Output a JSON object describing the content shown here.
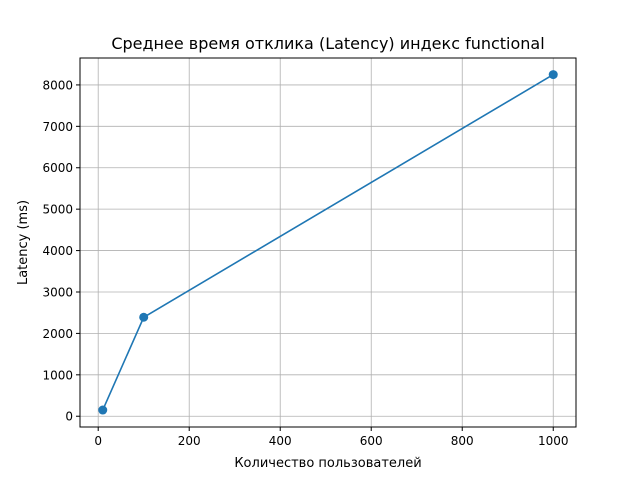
{
  "chart_data": {
    "type": "line",
    "title": "Среднее время отклика (Latency) индекс functional",
    "xlabel": "Количество пользователей",
    "ylabel": "Latency (ms)",
    "xlim": [
      -40,
      1050
    ],
    "ylim": [
      -260,
      8650
    ],
    "xticks": [
      0,
      200,
      400,
      600,
      800,
      1000
    ],
    "yticks": [
      0,
      1000,
      2000,
      3000,
      4000,
      5000,
      6000,
      7000,
      8000
    ],
    "grid": true,
    "series": [
      {
        "color": "#1f77b4",
        "marker": "circle",
        "points": [
          {
            "x": 10,
            "y": 150
          },
          {
            "x": 100,
            "y": 2390
          },
          {
            "x": 1000,
            "y": 8250
          }
        ]
      }
    ]
  }
}
